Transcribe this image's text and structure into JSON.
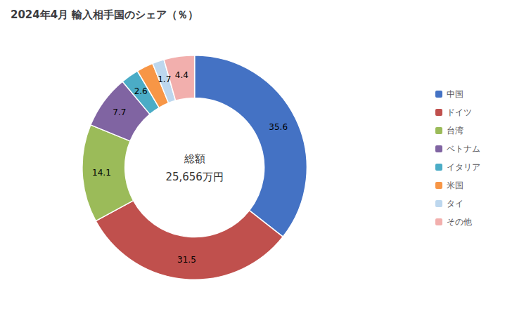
{
  "chart_data": {
    "type": "pie",
    "title": "2024年4月 輸入相手国のシェア（％）",
    "annotations": [
      "総額",
      "25,656万円"
    ],
    "categories": [
      "中国",
      "ドイツ",
      "台湾",
      "ベトナム",
      "イタリア",
      "米国",
      "タイ",
      "その他"
    ],
    "values": [
      35.6,
      31.5,
      14.1,
      7.7,
      2.6,
      2.4,
      1.7,
      4.4
    ],
    "colors": [
      "#4472C4",
      "#C0504D",
      "#9BBB59",
      "#8064A2",
      "#4BACC6",
      "#F79646",
      "#BDD7EE",
      "#F2AFAD"
    ],
    "data_labels": true,
    "legend": "right"
  }
}
